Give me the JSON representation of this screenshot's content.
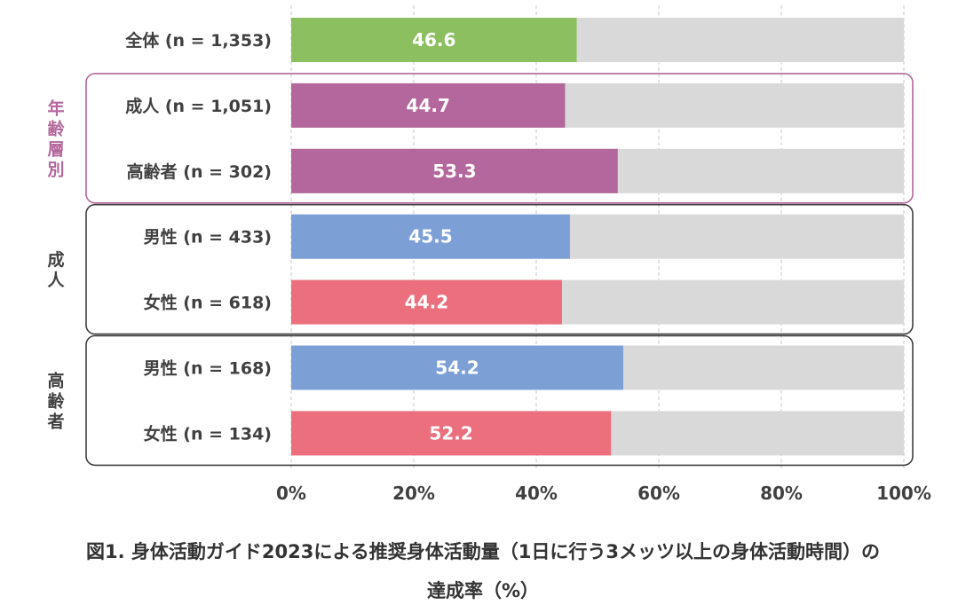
{
  "chart_data": {
    "type": "bar",
    "orientation": "horizontal",
    "categories": [
      "全体 (n = 1,353)",
      "成人 (n = 1,051)",
      "高齢者 (n = 302)",
      "男性 (n = 433)",
      "女性 (n = 618)",
      "男性 (n = 168)",
      "女性 (n = 134)"
    ],
    "values": [
      46.6,
      44.7,
      53.3,
      45.5,
      44.2,
      54.2,
      52.2
    ],
    "value_labels": [
      "46.6",
      "44.7",
      "53.3",
      "45.5",
      "44.2",
      "54.2",
      "52.2"
    ],
    "bar_colors": [
      "#8bbf5f",
      "#b4679c",
      "#b4679c",
      "#7c9fd6",
      "#ec6f7d",
      "#7c9fd6",
      "#ec6f7d"
    ],
    "background_color": "#d9d9d9",
    "xlim": [
      0,
      100
    ],
    "xticks": [
      "0%",
      "20%",
      "40%",
      "60%",
      "80%",
      "100%"
    ],
    "grid": true,
    "groups": [
      {
        "label": [
          "年",
          "齢",
          "層",
          "別"
        ],
        "color": "#b4679c",
        "rows": [
          1,
          2
        ]
      },
      {
        "label": [
          "成",
          "人"
        ],
        "color": "#404040",
        "rows": [
          3,
          4
        ]
      },
      {
        "label": [
          "高",
          "齢",
          "者"
        ],
        "color": "#404040",
        "rows": [
          5,
          6
        ]
      }
    ],
    "caption": {
      "line1": "図1. 身体活動ガイド2023による推奨身体活動量（1日に行う3メッツ以上の身体活動時間）の",
      "line2": "達成率（%）"
    }
  }
}
